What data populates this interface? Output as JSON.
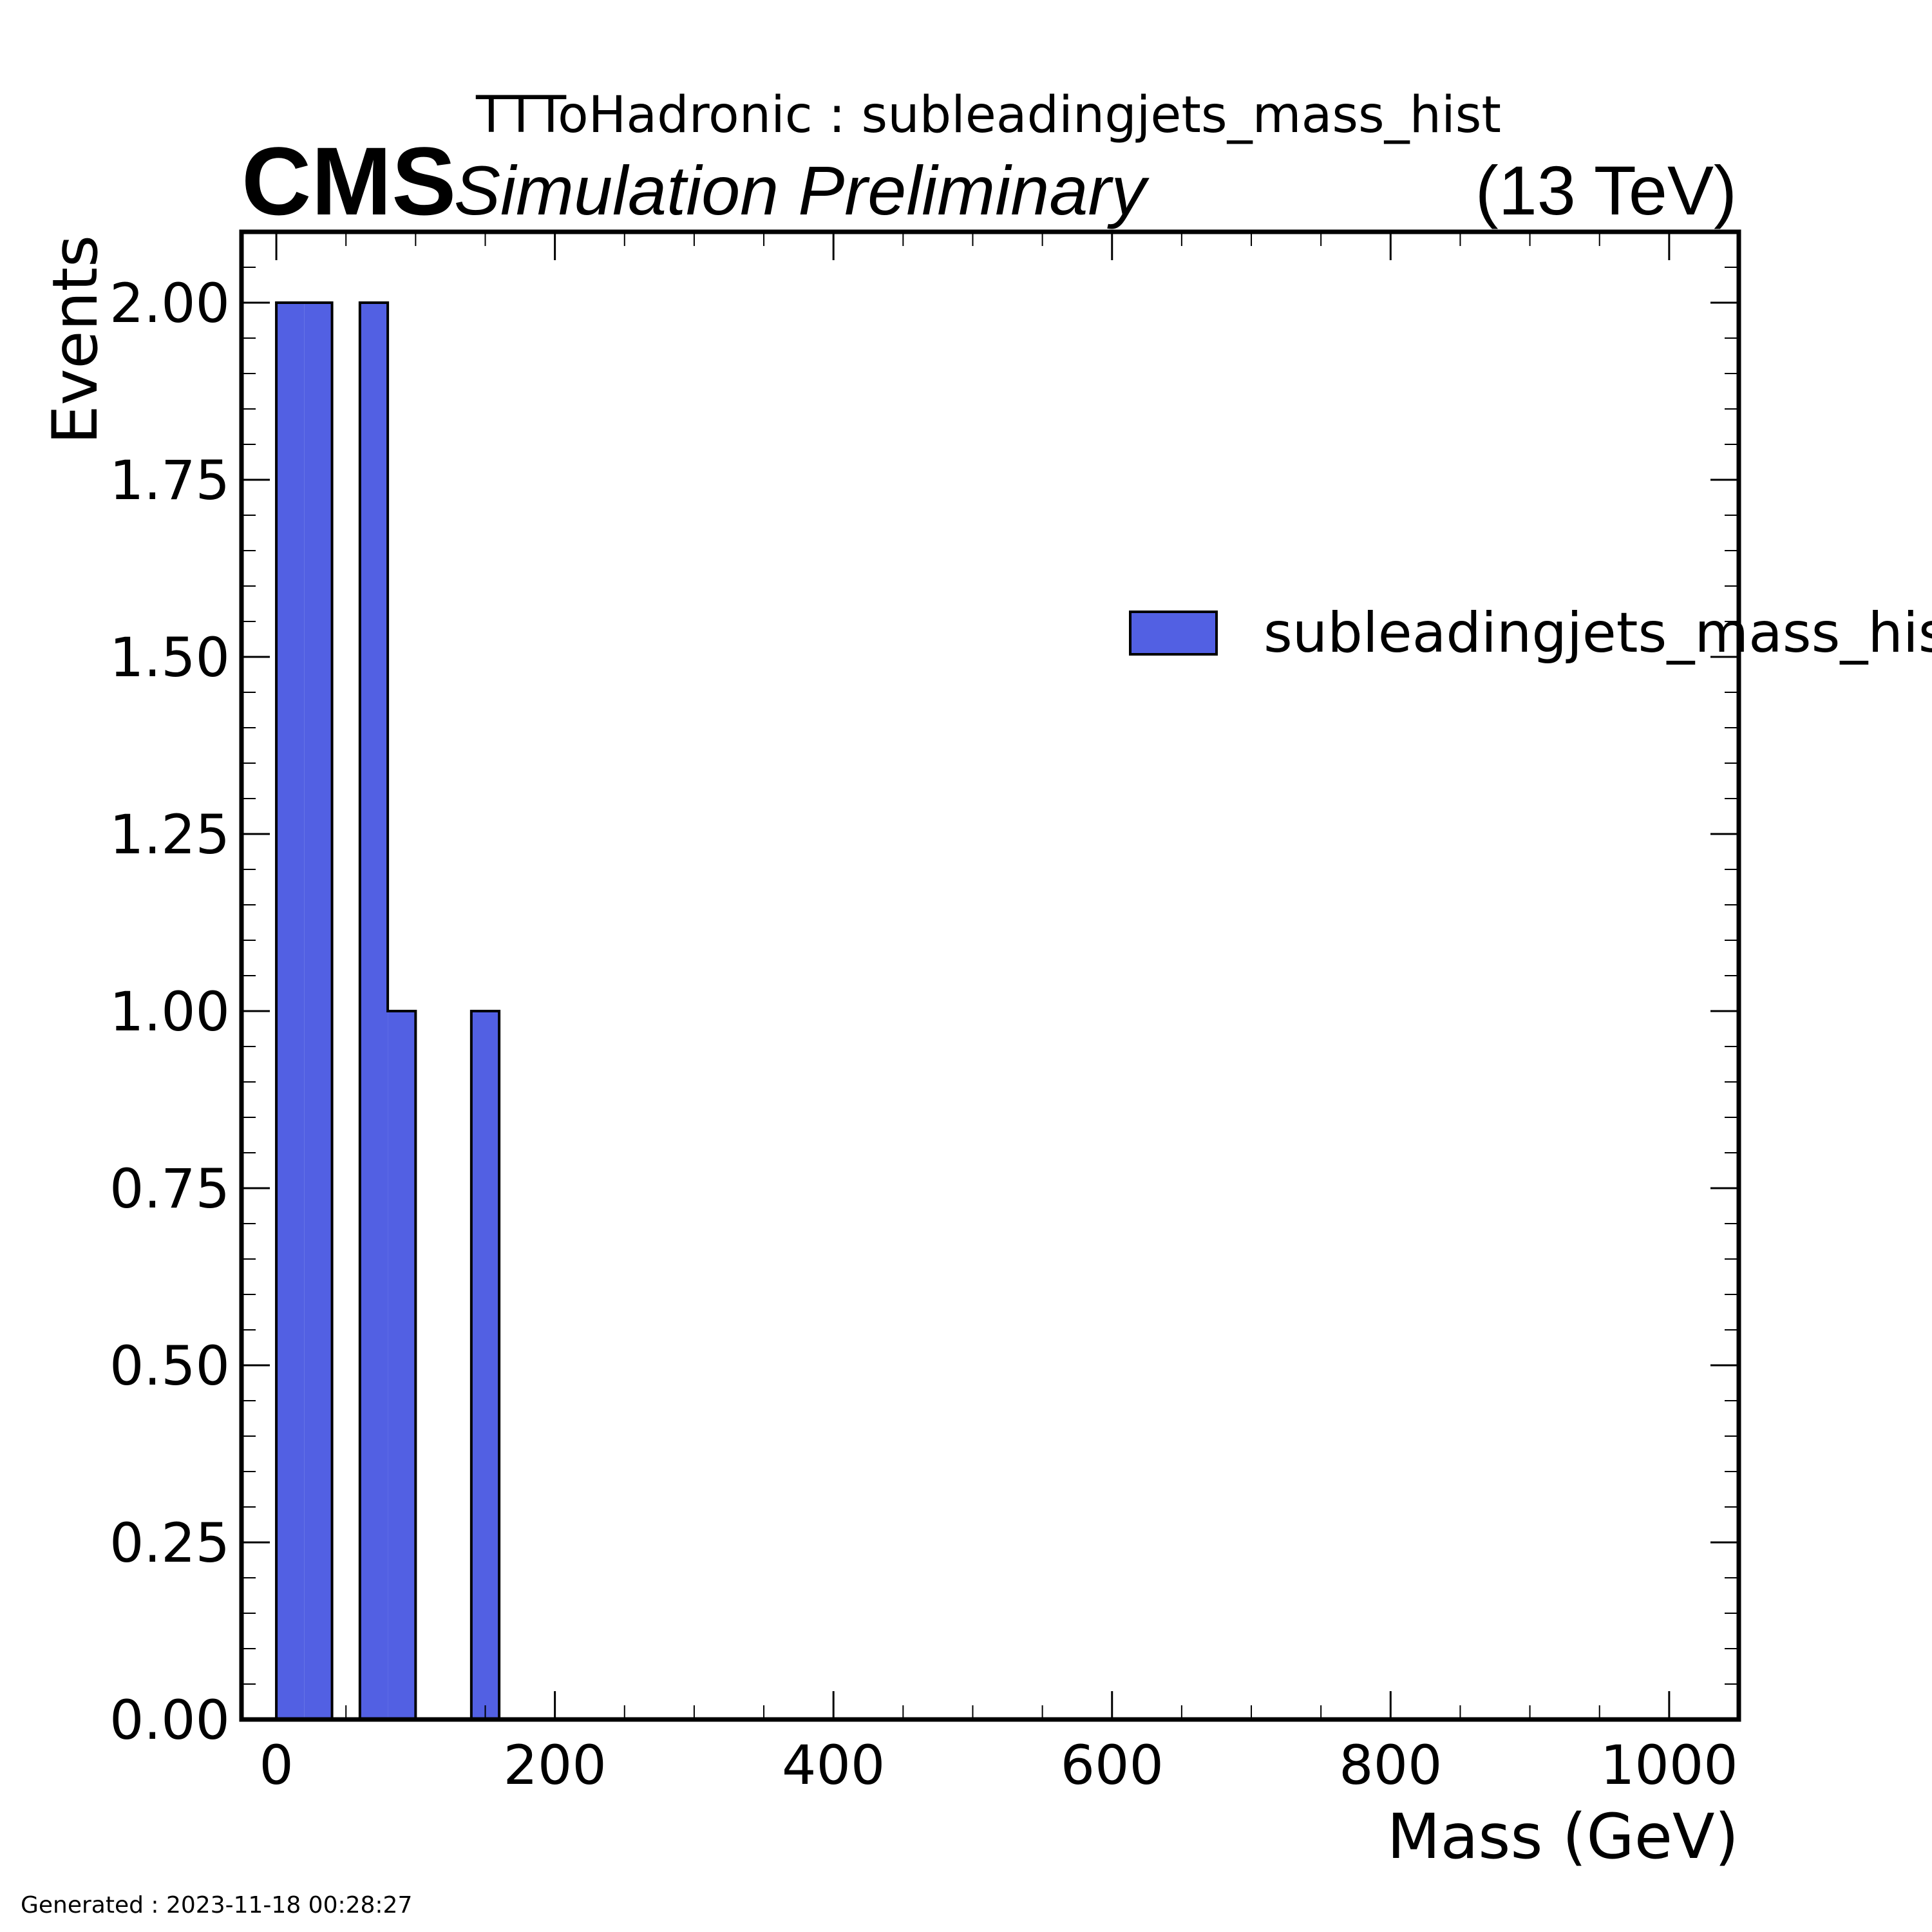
{
  "chart_data": {
    "type": "bar",
    "histogram": true,
    "title": "TTToHadronic : subleadingjets_mass_hist",
    "experiment": "CMS",
    "experiment_label": "Simulation Preliminary",
    "energy_label": "(13 TeV)",
    "xlabel": "Mass (GeV)",
    "ylabel": "Events",
    "xlim": [
      -25,
      1050
    ],
    "ylim": [
      0,
      2.1
    ],
    "x_ticks": [
      0,
      200,
      400,
      600,
      800,
      1000
    ],
    "x_tick_labels": [
      "0",
      "200",
      "400",
      "600",
      "800",
      "1000"
    ],
    "y_ticks": [
      0,
      0.25,
      0.5,
      0.75,
      1.0,
      1.25,
      1.5,
      1.75,
      2.0
    ],
    "y_tick_labels": [
      "0.00",
      "0.25",
      "0.50",
      "0.75",
      "1.00",
      "1.25",
      "1.50",
      "1.75",
      "2.00"
    ],
    "bin_width": 20,
    "bins": [
      {
        "x0": 0,
        "x1": 20,
        "value": 2
      },
      {
        "x0": 20,
        "x1": 40,
        "value": 2
      },
      {
        "x0": 60,
        "x1": 80,
        "value": 2
      },
      {
        "x0": 80,
        "x1": 100,
        "value": 1
      },
      {
        "x0": 140,
        "x1": 160,
        "value": 1
      }
    ],
    "series": [
      {
        "name": "subleadingjets_mass_hist",
        "color": "#5260e3"
      }
    ],
    "legend_placement": "right",
    "grid": false
  },
  "footer": {
    "generated": "Generated : 2023-11-18 00:28:27"
  }
}
